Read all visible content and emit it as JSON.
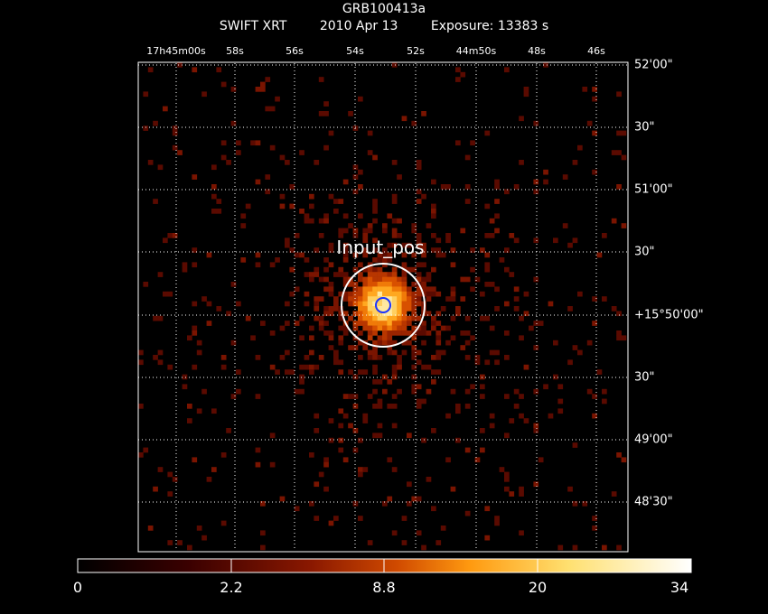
{
  "header": {
    "target": "GRB100413a",
    "instrument": "SWIFT XRT",
    "date": "2010 Apr 13",
    "exposure": "Exposure: 13383 s"
  },
  "ra_labels": [
    "17h45m00s",
    "58s",
    "56s",
    "54s",
    "52s",
    "44m50s",
    "48s",
    "46s"
  ],
  "dec_labels": [
    "52'00\"",
    "30\"",
    "51'00\"",
    "30\"",
    "+15°50'00\"",
    "30\"",
    "49'00\"",
    "48'30\""
  ],
  "source": {
    "label": "Input_pos",
    "circle_color": "#ffffff",
    "marker_color": "#1a33ff"
  },
  "colorbar": {
    "ticks": [
      "0",
      "2.2",
      "8.8",
      "20",
      "34"
    ],
    "colors": [
      "#000000",
      "#3a0000",
      "#8a1800",
      "#d04a00",
      "#ff9a10",
      "#ffe070",
      "#ffffff"
    ]
  },
  "grid_color": "#ffffff"
}
